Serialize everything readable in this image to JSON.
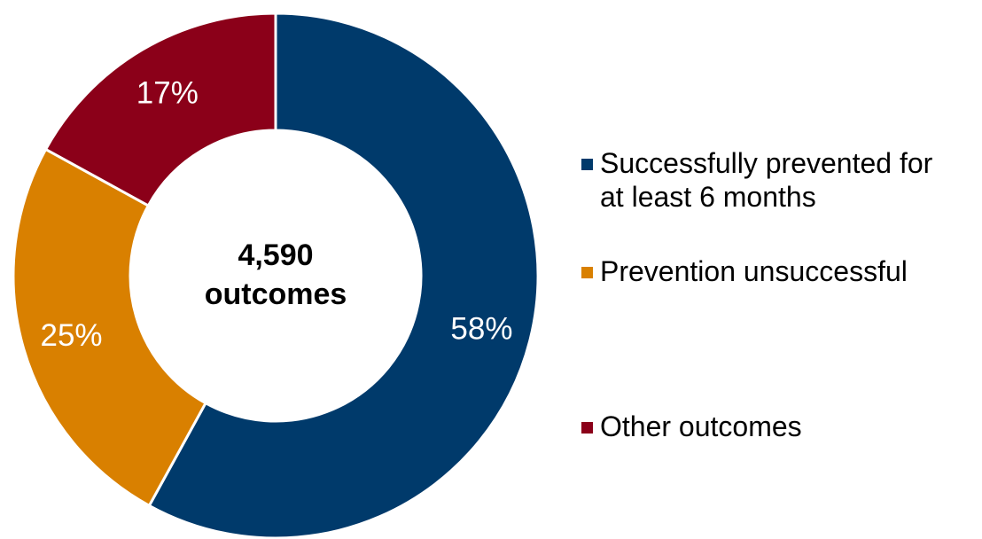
{
  "chart_data": {
    "type": "donut",
    "center_label": [
      "4,590",
      "outcomes"
    ],
    "slices": [
      {
        "name": [
          "Successfully prevented for",
          "at least 6 months"
        ],
        "value": 58,
        "label": "58%",
        "color": "#003A6B"
      },
      {
        "name": [
          "Prevention unsuccessful"
        ],
        "value": 25,
        "label": "25%",
        "color": "#D98000"
      },
      {
        "name": [
          "Other outcomes"
        ],
        "value": 17,
        "label": "17%",
        "color": "#8B0019"
      }
    ],
    "legend": {
      "position": "right"
    }
  }
}
